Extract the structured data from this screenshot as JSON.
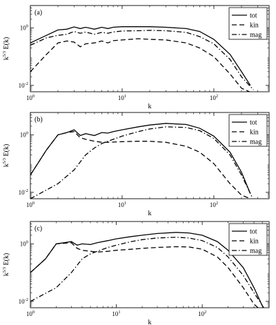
{
  "figure": {
    "x_axis_label": "k",
    "y_axis_label": {
      "base": "k",
      "exponent": "5/3",
      "rest": " E(k)"
    },
    "x_tick_labels": [
      {
        "base": "10",
        "exp": "0"
      },
      {
        "base": "10",
        "exp": "1"
      },
      {
        "base": "10",
        "exp": "2"
      }
    ],
    "y_tick_labels": [
      {
        "base": "10",
        "exp": "0"
      },
      {
        "base": "10",
        "exp": "-2"
      }
    ]
  },
  "chart_data": [
    {
      "type": "line",
      "panel_label": "(a)",
      "title": "",
      "xlabel": "k",
      "ylabel": "k^{5/3} E(k)",
      "x_scale": "log",
      "y_scale": "log",
      "xlim": [
        1,
        400
      ],
      "ylim": [
        0.006,
        6
      ],
      "x_ticks": [
        1,
        10,
        100
      ],
      "y_ticks": [
        0.01,
        1
      ],
      "legend": {
        "position": "top-right",
        "entries": [
          "tot",
          "kin",
          "mag"
        ]
      },
      "series": [
        {
          "name": "tot",
          "style": "solid",
          "color": "#000000",
          "x": [
            1,
            1.5,
            2,
            2.5,
            3,
            3.5,
            4,
            5,
            6,
            7,
            8,
            10,
            15,
            20,
            30,
            50,
            70,
            100,
            150,
            200,
            250
          ],
          "y": [
            0.3,
            0.55,
            0.85,
            0.9,
            1.08,
            0.95,
            1.05,
            0.9,
            1.05,
            0.95,
            1.05,
            1.1,
            1.1,
            1.1,
            1.05,
            0.95,
            0.75,
            0.4,
            0.12,
            0.03,
            0.01
          ]
        },
        {
          "name": "kin",
          "style": "dashed",
          "color": "#000000",
          "x": [
            1,
            1.5,
            2,
            2.5,
            3,
            3.5,
            4,
            5,
            6,
            7,
            8,
            10,
            15,
            20,
            30,
            50,
            70,
            100,
            150,
            200,
            260
          ],
          "y": [
            0.03,
            0.12,
            0.3,
            0.35,
            0.32,
            0.22,
            0.28,
            0.3,
            0.35,
            0.3,
            0.36,
            0.38,
            0.42,
            0.4,
            0.38,
            0.3,
            0.2,
            0.1,
            0.025,
            0.008,
            0.0055
          ]
        },
        {
          "name": "mag",
          "style": "dashdot",
          "color": "#000000",
          "x": [
            1,
            1.5,
            2,
            2.5,
            3,
            3.5,
            4,
            5,
            6,
            7,
            8,
            10,
            15,
            20,
            30,
            50,
            70,
            100,
            150,
            200,
            270
          ],
          "y": [
            0.25,
            0.45,
            0.55,
            0.6,
            0.75,
            0.65,
            0.72,
            0.6,
            0.7,
            0.65,
            0.72,
            0.78,
            0.8,
            0.82,
            0.8,
            0.7,
            0.5,
            0.28,
            0.08,
            0.02,
            0.007
          ]
        }
      ]
    },
    {
      "type": "line",
      "panel_label": "(b)",
      "title": "",
      "xlabel": "k",
      "ylabel": "k^{5/3} E(k)",
      "x_scale": "log",
      "y_scale": "log",
      "xlim": [
        1,
        400
      ],
      "ylim": [
        0.006,
        6
      ],
      "x_ticks": [
        1,
        10,
        100
      ],
      "y_ticks": [
        0.01,
        1
      ],
      "legend": {
        "position": "top-right",
        "entries": [
          "tot",
          "kin",
          "mag"
        ]
      },
      "series": [
        {
          "name": "tot",
          "style": "solid",
          "color": "#000000",
          "x": [
            1,
            1.5,
            2,
            2.5,
            3,
            3.5,
            4,
            5,
            6,
            7,
            8,
            10,
            15,
            20,
            30,
            50,
            70,
            100,
            150,
            200,
            250
          ],
          "y": [
            0.04,
            0.3,
            1.0,
            1.2,
            1.5,
            0.95,
            1.1,
            0.95,
            1.2,
            1.15,
            1.3,
            1.5,
            1.9,
            2.2,
            2.5,
            2.3,
            1.7,
            0.9,
            0.25,
            0.05,
            0.009
          ]
        },
        {
          "name": "kin",
          "style": "dashed",
          "color": "#000000",
          "x": [
            1,
            1.5,
            2,
            2.5,
            3,
            3.5,
            4,
            5,
            6,
            7,
            8,
            10,
            15,
            20,
            30,
            50,
            70,
            100,
            150,
            200,
            250
          ],
          "y": [
            0.04,
            0.3,
            1.0,
            1.2,
            1.3,
            0.8,
            0.7,
            0.6,
            0.55,
            0.55,
            0.56,
            0.58,
            0.6,
            0.6,
            0.55,
            0.4,
            0.25,
            0.1,
            0.02,
            0.008,
            0.006
          ]
        },
        {
          "name": "mag",
          "style": "dashdot",
          "color": "#000000",
          "x": [
            1,
            2,
            3,
            4,
            5,
            6,
            8,
            10,
            15,
            20,
            30,
            50,
            70,
            100,
            150,
            200,
            260
          ],
          "y": [
            0.006,
            0.02,
            0.06,
            0.2,
            0.35,
            0.5,
            0.7,
            0.9,
            1.3,
            1.6,
            1.9,
            1.8,
            1.4,
            0.75,
            0.2,
            0.04,
            0.007
          ]
        }
      ]
    },
    {
      "type": "line",
      "panel_label": "(c)",
      "title": "",
      "xlabel": "k",
      "ylabel": "k^{5/3} E(k)",
      "x_scale": "log",
      "y_scale": "log",
      "xlim": [
        1,
        600
      ],
      "ylim": [
        0.006,
        6
      ],
      "x_ticks": [
        1,
        10,
        100
      ],
      "y_ticks": [
        0.01,
        1
      ],
      "legend": {
        "position": "top-right",
        "entries": [
          "tot",
          "kin",
          "mag"
        ]
      },
      "series": [
        {
          "name": "tot",
          "style": "solid",
          "color": "#000000",
          "x": [
            1,
            1.5,
            2,
            2.5,
            3,
            3.5,
            4,
            5,
            6,
            8,
            10,
            15,
            20,
            30,
            50,
            70,
            100,
            150,
            200,
            300,
            400,
            500
          ],
          "y": [
            0.1,
            0.3,
            1.0,
            1.1,
            1.2,
            0.9,
            1.0,
            0.95,
            1.1,
            1.3,
            1.5,
            1.8,
            2.0,
            2.3,
            2.5,
            2.4,
            2.0,
            1.2,
            0.6,
            0.15,
            0.03,
            0.007
          ]
        },
        {
          "name": "kin",
          "style": "dashed",
          "color": "#000000",
          "x": [
            1,
            1.5,
            2,
            2.5,
            3,
            3.5,
            4,
            5,
            6,
            8,
            10,
            15,
            20,
            30,
            50,
            70,
            100,
            150,
            200,
            300,
            400,
            480
          ],
          "y": [
            0.1,
            0.3,
            1.0,
            1.05,
            1.1,
            0.7,
            0.6,
            0.55,
            0.52,
            0.55,
            0.6,
            0.65,
            0.7,
            0.75,
            0.8,
            0.78,
            0.65,
            0.35,
            0.15,
            0.03,
            0.008,
            0.005
          ]
        },
        {
          "name": "mag",
          "style": "dashdot",
          "color": "#000000",
          "x": [
            1,
            2,
            3,
            4,
            5,
            6,
            8,
            10,
            15,
            20,
            30,
            50,
            70,
            100,
            150,
            200,
            300,
            400,
            520
          ],
          "y": [
            0.01,
            0.03,
            0.1,
            0.3,
            0.45,
            0.55,
            0.75,
            0.9,
            1.2,
            1.4,
            1.6,
            1.7,
            1.6,
            1.3,
            0.75,
            0.35,
            0.08,
            0.02,
            0.006
          ]
        }
      ]
    }
  ]
}
